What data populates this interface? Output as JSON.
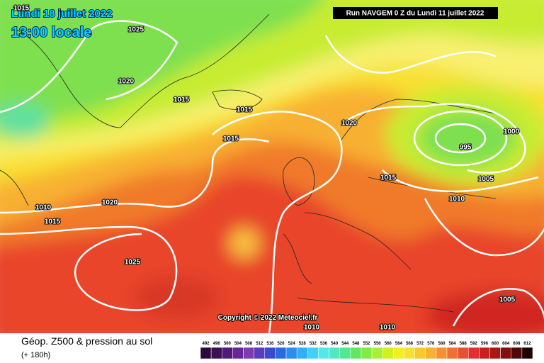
{
  "header": {
    "date": "Lundi 18 juillet 2022",
    "time": "13:00 locale",
    "run": "Run NAVGEM 0 Z du Lundi 11 juillet 2022"
  },
  "isobar_labels": [
    "1015",
    "1025",
    "1020",
    "1015",
    "1015",
    "1015",
    "1020",
    "1000",
    "995",
    "1015",
    "1005",
    "1010",
    "1010",
    "1020",
    "1015",
    "1025",
    "1005",
    "1010",
    "1010"
  ],
  "copyright": "Copyright © 2022 Meteociel.fr",
  "footer": {
    "title": "Géop. Z500 & pression au sol",
    "subtitle": "(+ 180h)"
  },
  "legend": {
    "labels": [
      492,
      496,
      500,
      504,
      508,
      512,
      516,
      520,
      524,
      528,
      532,
      536,
      540,
      544,
      548,
      552,
      556,
      560,
      564,
      568,
      572,
      576,
      580,
      584,
      588,
      592,
      596,
      600,
      604,
      608,
      612
    ],
    "colors": [
      "#2a0a3a",
      "#3c0f55",
      "#521a78",
      "#6a2596",
      "#7e3cb0",
      "#5a3cc0",
      "#3a4ad0",
      "#2a6ae0",
      "#2a8ef0",
      "#30b0f8",
      "#40d0f8",
      "#50e8e8",
      "#50e8c0",
      "#50e890",
      "#60e860",
      "#80ec40",
      "#a8f030",
      "#d0f020",
      "#f0f020",
      "#f8e030",
      "#f8c830",
      "#f8b030",
      "#f89030",
      "#f07030",
      "#e85030",
      "#e03030",
      "#c82020",
      "#a81818",
      "#801010",
      "#500808",
      "#200000"
    ]
  }
}
